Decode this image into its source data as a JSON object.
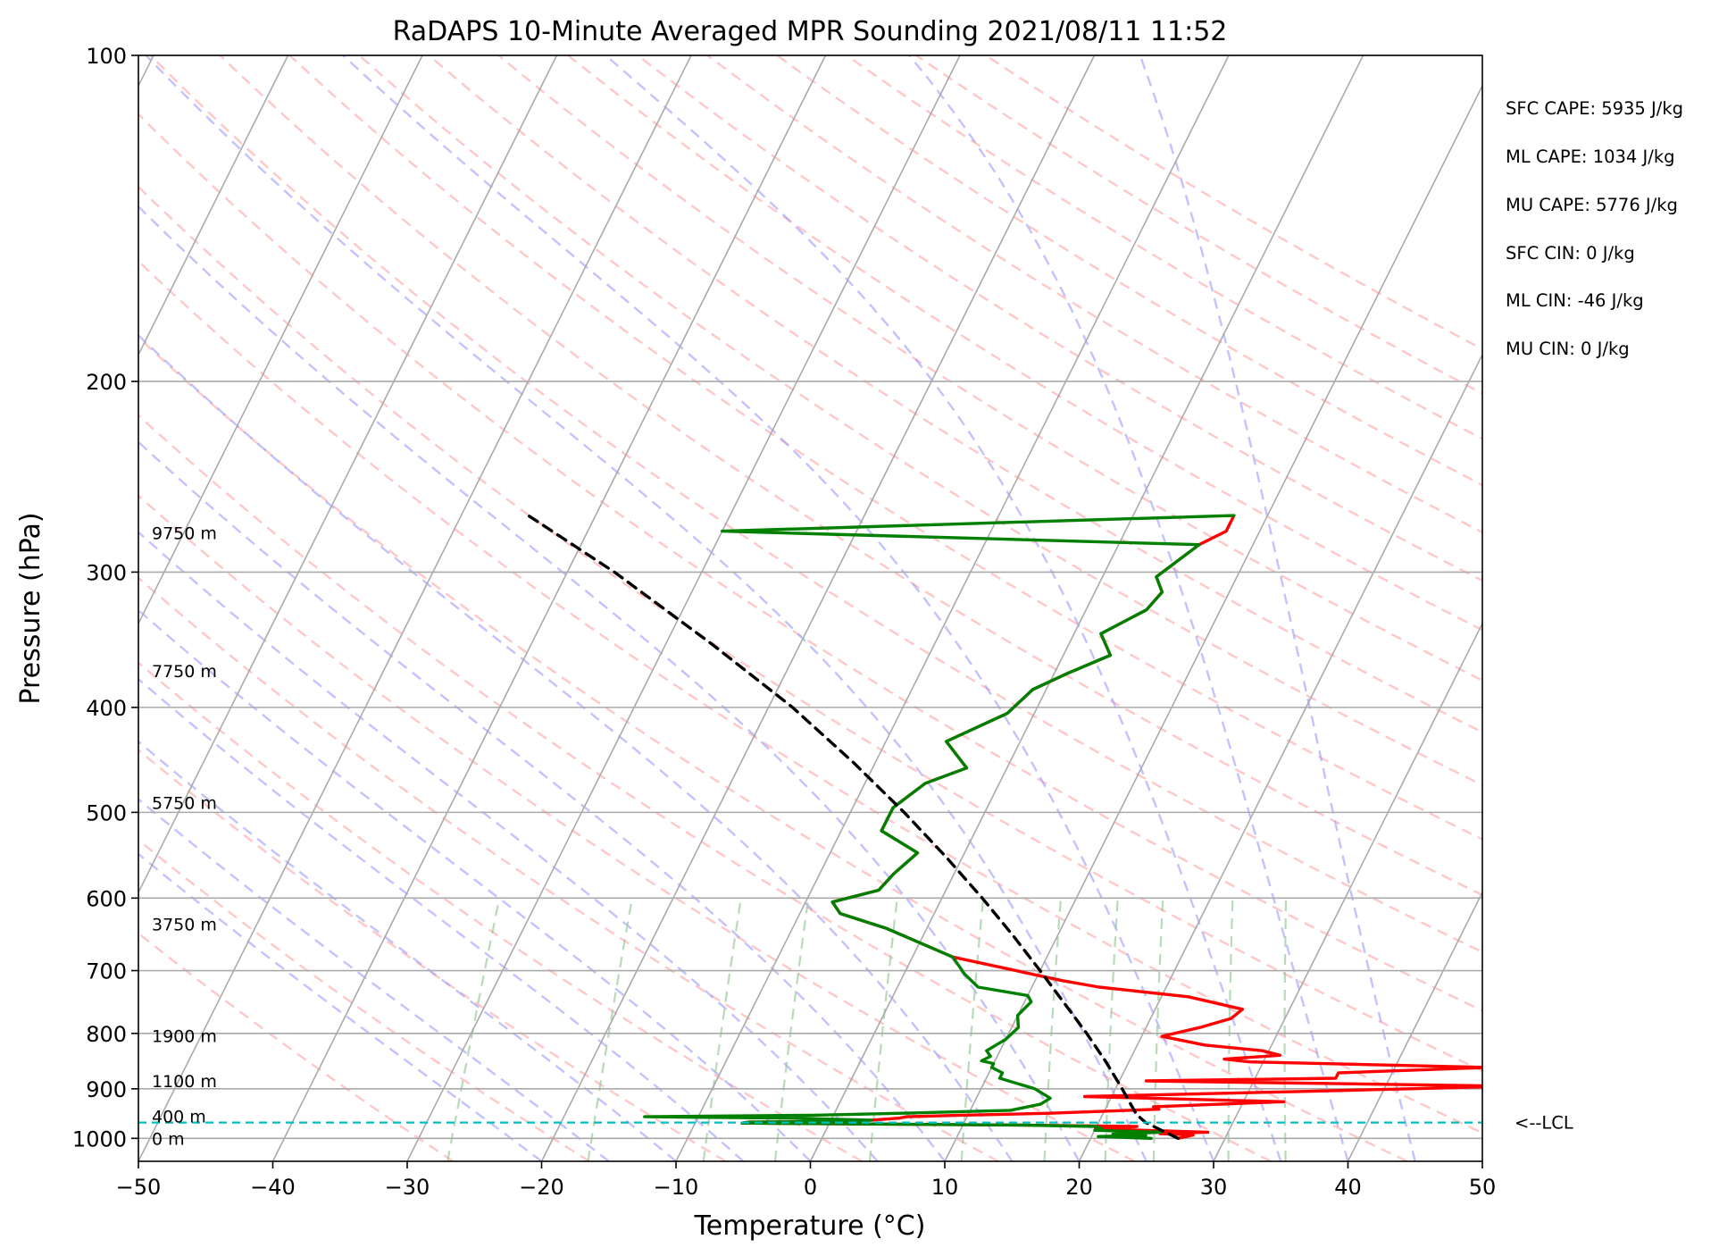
{
  "chart_data": {
    "type": "line",
    "title": "RaDAPS 10-Minute Averaged MPR Sounding 2021/08/11 11:52",
    "xlabel": "Temperature (°C)",
    "ylabel": "Pressure (hPa)",
    "xlim": [
      -50,
      50
    ],
    "ylim": [
      1050,
      100
    ],
    "y_scale": "log",
    "grid": true,
    "x_ticks": [
      -50,
      -40,
      -30,
      -20,
      -10,
      0,
      10,
      20,
      30,
      40,
      50
    ],
    "x_tick_labels": [
      "−50",
      "−40",
      "−30",
      "−20",
      "−10",
      "0",
      "10",
      "20",
      "30",
      "40",
      "50"
    ],
    "y_ticks": [
      100,
      200,
      300,
      400,
      500,
      600,
      700,
      800,
      900,
      1000
    ],
    "y_tick_labels": [
      "100",
      "200",
      "300",
      "400",
      "500",
      "600",
      "700",
      "800",
      "900",
      "1000"
    ],
    "skew_t": true,
    "background_lines": {
      "isotherms_color": "#aaaaaa",
      "dry_adiabats_color": "#ff9999",
      "moist_adiabats_color": "#9999ff",
      "mixing_ratio_color": "#99cc99"
    },
    "series": [
      {
        "color": "#ff0000",
        "points": [
          [
            1000,
            26.5
          ],
          [
            993,
            27.5
          ],
          [
            990,
            25.0
          ],
          [
            987,
            28.5
          ],
          [
            980,
            20.0
          ],
          [
            975,
            23.0
          ],
          [
            972,
            14.0
          ],
          [
            968,
            -6.5
          ],
          [
            966,
            -6.0
          ],
          [
            964,
            2.0
          ],
          [
            962,
            3.0
          ],
          [
            958,
            5.0
          ],
          [
            955,
            5.5
          ],
          [
            952,
            9.5
          ],
          [
            948,
            16.0
          ],
          [
            940,
            24.0
          ],
          [
            935,
            23.5
          ],
          [
            925,
            33.0
          ],
          [
            915,
            18.0
          ],
          [
            905,
            34.0
          ],
          [
            895,
            49.5
          ],
          [
            885,
            22.0
          ],
          [
            880,
            36.0
          ],
          [
            870,
            36.0
          ],
          [
            860,
            47.0
          ],
          [
            850,
            29.0
          ],
          [
            845,
            27.0
          ],
          [
            838,
            31.0
          ],
          [
            830,
            29.5
          ],
          [
            820,
            25.0
          ],
          [
            805,
            21.5
          ],
          [
            790,
            24.0
          ],
          [
            775,
            26.0
          ],
          [
            760,
            26.5
          ],
          [
            740,
            22.0
          ],
          [
            725,
            15.0
          ],
          [
            715,
            12.0
          ],
          [
            680,
            3.0
          ],
          [
            640,
            -3.0
          ],
          [
            620,
            -7.0
          ],
          [
            605,
            -8.0
          ],
          [
            590,
            -5.0
          ],
          [
            570,
            -4.5
          ],
          [
            545,
            -3.5
          ],
          [
            520,
            -7.0
          ],
          [
            495,
            -7.0
          ],
          [
            470,
            -5.5
          ],
          [
            455,
            -3.0
          ],
          [
            430,
            -5.5
          ],
          [
            405,
            -2.0
          ],
          [
            385,
            -1.0
          ],
          [
            372,
            1.0
          ],
          [
            358,
            3.5
          ],
          [
            342,
            2.0
          ],
          [
            325,
            4.5
          ],
          [
            313,
            5.0
          ],
          [
            303,
            4.0
          ],
          [
            283,
            6.0
          ],
          [
            275,
            7.5
          ],
          [
            266,
            7.5
          ]
        ]
      },
      {
        "color": "#008000",
        "points": [
          [
            1000,
            24.5
          ],
          [
            996,
            20.5
          ],
          [
            994,
            24.0
          ],
          [
            991,
            21.5
          ],
          [
            987,
            25.0
          ],
          [
            983,
            20.0
          ],
          [
            980,
            20.5
          ],
          [
            975,
            20.0
          ],
          [
            972,
            14.0
          ],
          [
            968,
            -6.5
          ],
          [
            966,
            -6.0
          ],
          [
            964,
            2.0
          ],
          [
            962,
            3.0
          ],
          [
            958,
            -3.0
          ],
          [
            955,
            -14.0
          ],
          [
            952,
            -1.5
          ],
          [
            948,
            5.0
          ],
          [
            942,
            13.0
          ],
          [
            930,
            15.0
          ],
          [
            918,
            15.5
          ],
          [
            900,
            14.0
          ],
          [
            880,
            11.0
          ],
          [
            870,
            11.0
          ],
          [
            860,
            10.0
          ],
          [
            853,
            10.0
          ],
          [
            848,
            9.0
          ],
          [
            840,
            9.5
          ],
          [
            830,
            9.0
          ],
          [
            810,
            10.0
          ],
          [
            790,
            10.5
          ],
          [
            770,
            10.0
          ],
          [
            748,
            10.5
          ],
          [
            738,
            10.0
          ],
          [
            725,
            6.0
          ],
          [
            705,
            4.5
          ],
          [
            680,
            3.0
          ],
          [
            640,
            -3.0
          ],
          [
            620,
            -7.0
          ],
          [
            605,
            -8.0
          ],
          [
            590,
            -5.0
          ],
          [
            570,
            -4.5
          ],
          [
            545,
            -3.5
          ],
          [
            520,
            -7.0
          ],
          [
            495,
            -7.0
          ],
          [
            470,
            -5.5
          ],
          [
            455,
            -3.0
          ],
          [
            430,
            -5.5
          ],
          [
            405,
            -2.0
          ],
          [
            385,
            -1.0
          ],
          [
            372,
            1.0
          ],
          [
            358,
            3.5
          ],
          [
            342,
            2.0
          ],
          [
            325,
            4.5
          ],
          [
            313,
            5.0
          ],
          [
            303,
            4.0
          ],
          [
            283,
            6.0
          ],
          [
            275,
            -30.0
          ],
          [
            266,
            7.5
          ]
        ]
      },
      {
        "color": "#000000",
        "dashed": true,
        "points": [
          [
            1000,
            26.5
          ],
          [
            967,
            23.5
          ],
          [
            950,
            22.5
          ],
          [
            900,
            20.5
          ],
          [
            850,
            18.3
          ],
          [
            800,
            15.8
          ],
          [
            750,
            13.0
          ],
          [
            700,
            10.0
          ],
          [
            650,
            6.7
          ],
          [
            600,
            3.0
          ],
          [
            550,
            -1.2
          ],
          [
            500,
            -6.0
          ],
          [
            450,
            -11.6
          ],
          [
            400,
            -18.2
          ],
          [
            350,
            -26.5
          ],
          [
            300,
            -36.5
          ],
          [
            266,
            -45.0
          ]
        ]
      }
    ],
    "height_labels": [
      {
        "text": "0 m",
        "p": 1000
      },
      {
        "text": "400 m",
        "p": 954
      },
      {
        "text": "1100 m",
        "p": 885
      },
      {
        "text": "1900 m",
        "p": 804
      },
      {
        "text": "3750 m",
        "p": 634
      },
      {
        "text": "5750 m",
        "p": 490
      },
      {
        "text": "7750 m",
        "p": 370
      },
      {
        "text": "9750 m",
        "p": 276
      }
    ],
    "lcl": {
      "p": 967,
      "color": "#00bfbf",
      "label": "<--LCL"
    },
    "stats": [
      "SFC CAPE: 5935 J/kg",
      "ML CAPE: 1034 J/kg",
      "MU CAPE: 5776 J/kg",
      "SFC CIN: 0 J/kg",
      "ML CIN: -46 J/kg",
      "MU CIN: 0 J/kg"
    ]
  }
}
